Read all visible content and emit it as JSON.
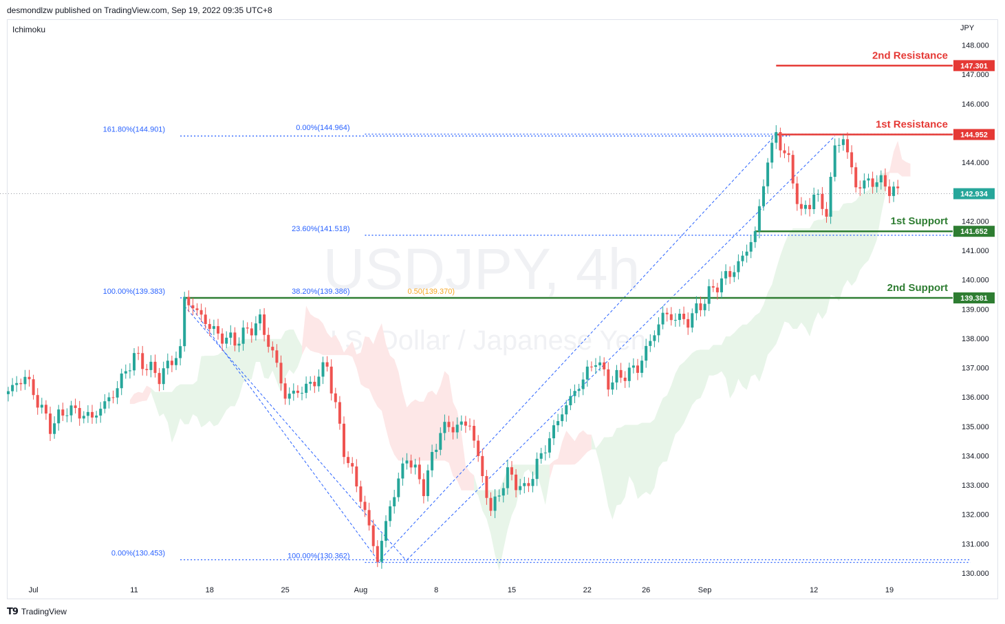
{
  "header": {
    "published": "desmondlzw published on TradingView.com, Sep 19, 2022 09:35 UTC+8"
  },
  "indicator": "Ichimoku",
  "currency": "JPY",
  "footer": {
    "brand": "TradingView"
  },
  "watermark": {
    "symbol": "USDJPY, 4h",
    "description": "U.S. Dollar / Japanese Yen"
  },
  "colors": {
    "up": "#26a69a",
    "down": "#ef5350",
    "resistance": "#e53935",
    "support": "#2e7d32",
    "fib": "#2962ff",
    "cloud_up": "#e8f5e9",
    "cloud_down": "#fde7e7"
  },
  "chart_data": {
    "type": "candlestick",
    "symbol": "USDJPY",
    "timeframe": "4h",
    "x_axis": {
      "ticks": [
        {
          "label": "Jul",
          "bar": 6
        },
        {
          "label": "11",
          "bar": 30
        },
        {
          "label": "18",
          "bar": 48
        },
        {
          "label": "25",
          "bar": 66
        },
        {
          "label": "Aug",
          "bar": 84
        },
        {
          "label": "8",
          "bar": 102
        },
        {
          "label": "15",
          "bar": 120
        },
        {
          "label": "22",
          "bar": 138
        },
        {
          "label": "26",
          "bar": 152
        },
        {
          "label": "Sep",
          "bar": 166
        },
        {
          "label": "12",
          "bar": 192
        },
        {
          "label": "19",
          "bar": 210
        }
      ],
      "total_bars": 226
    },
    "y_axis": {
      "range": [
        129.6,
        148.6
      ],
      "ticks": [
        130.0,
        131.0,
        132.0,
        133.0,
        134.0,
        135.0,
        136.0,
        137.0,
        138.0,
        139.0,
        140.0,
        141.0,
        142.0,
        143.0,
        144.0,
        145.0,
        146.0,
        147.0,
        148.0
      ],
      "tick_labels": [
        "130.000",
        "131.000",
        "132.000",
        "133.000",
        "134.000",
        "135.000",
        "136.000",
        "137.000",
        "138.000",
        "139.000",
        "140.000",
        "141.000",
        "142.000",
        "143.000",
        "144.000",
        "145.000",
        "146.000",
        "147.000",
        "148.000"
      ]
    },
    "anchors": [
      {
        "bar": 0,
        "price": 136.2
      },
      {
        "bar": 4,
        "price": 136.7
      },
      {
        "bar": 10,
        "price": 135.0
      },
      {
        "bar": 14,
        "price": 135.6
      },
      {
        "bar": 20,
        "price": 135.3
      },
      {
        "bar": 25,
        "price": 136.1
      },
      {
        "bar": 30,
        "price": 137.4
      },
      {
        "bar": 36,
        "price": 136.7
      },
      {
        "bar": 41,
        "price": 137.6
      },
      {
        "bar": 42,
        "price": 139.38
      },
      {
        "bar": 50,
        "price": 138.1
      },
      {
        "bar": 54,
        "price": 137.9
      },
      {
        "bar": 60,
        "price": 138.6
      },
      {
        "bar": 64,
        "price": 137.1
      },
      {
        "bar": 66,
        "price": 136.0
      },
      {
        "bar": 72,
        "price": 136.4
      },
      {
        "bar": 76,
        "price": 137.1
      },
      {
        "bar": 80,
        "price": 134.2
      },
      {
        "bar": 84,
        "price": 132.6
      },
      {
        "bar": 88,
        "price": 130.45
      },
      {
        "bar": 91,
        "price": 132.3
      },
      {
        "bar": 95,
        "price": 134.0
      },
      {
        "bar": 99,
        "price": 132.9
      },
      {
        "bar": 103,
        "price": 134.9
      },
      {
        "bar": 110,
        "price": 135.1
      },
      {
        "bar": 115,
        "price": 132.1
      },
      {
        "bar": 119,
        "price": 133.4
      },
      {
        "bar": 123,
        "price": 132.8
      },
      {
        "bar": 127,
        "price": 134.0
      },
      {
        "bar": 132,
        "price": 135.5
      },
      {
        "bar": 140,
        "price": 137.3
      },
      {
        "bar": 143,
        "price": 136.5
      },
      {
        "bar": 150,
        "price": 137.0
      },
      {
        "bar": 156,
        "price": 138.8
      },
      {
        "bar": 162,
        "price": 138.6
      },
      {
        "bar": 168,
        "price": 139.7
      },
      {
        "bar": 174,
        "price": 140.5
      },
      {
        "bar": 178,
        "price": 141.6
      },
      {
        "bar": 181,
        "price": 144.1
      },
      {
        "bar": 183,
        "price": 144.95
      },
      {
        "bar": 186,
        "price": 144.0
      },
      {
        "bar": 189,
        "price": 142.2
      },
      {
        "bar": 192,
        "price": 142.9
      },
      {
        "bar": 195,
        "price": 142.3
      },
      {
        "bar": 197,
        "price": 144.5
      },
      {
        "bar": 199,
        "price": 144.85
      },
      {
        "bar": 202,
        "price": 143.2
      },
      {
        "bar": 207,
        "price": 143.4
      },
      {
        "bar": 212,
        "price": 142.93
      }
    ],
    "current_price": 142.934,
    "levels": [
      {
        "name": "2nd Resistance",
        "price": 147.301,
        "label": "147.301",
        "type": "resistance"
      },
      {
        "name": "1st Resistance",
        "price": 144.952,
        "label": "144.952",
        "type": "resistance"
      },
      {
        "name": "1st Support",
        "price": 141.652,
        "label": "141.652",
        "type": "support"
      },
      {
        "name": "2nd Support",
        "price": 139.381,
        "label": "139.381",
        "type": "support"
      }
    ],
    "current_label": "142.934",
    "fib_labels": [
      {
        "text": "161.80%(144.901)",
        "price": 144.901,
        "from_bar": 41,
        "to_bar": 183
      },
      {
        "text": "0.00%(144.964)",
        "price": 144.964,
        "from_bar": 85,
        "to_bar": 226
      },
      {
        "text": "23.60%(141.518)",
        "price": 141.518,
        "from_bar": 85,
        "to_bar": 226
      },
      {
        "text": "100.00%(139.383)",
        "price": 139.383,
        "from_bar": 41,
        "to_bar": 42
      },
      {
        "text": "38.20%(139.386)",
        "price": 139.386,
        "from_bar": 85,
        "to_bar": 178
      },
      {
        "text": "0.00%(130.453)",
        "price": 130.453,
        "from_bar": 41,
        "to_bar": 226
      },
      {
        "text": "100.00%(130.362)",
        "price": 130.362,
        "from_bar": 85,
        "to_bar": 226
      }
    ],
    "fib_overlap_label": "0.50(139.370)"
  }
}
